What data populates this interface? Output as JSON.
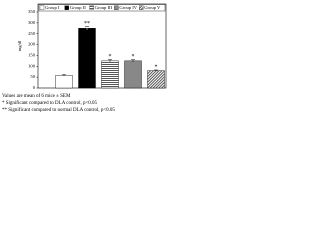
{
  "chart_data": {
    "type": "bar",
    "ylabel": "mg/dl",
    "categories": [
      null
    ],
    "series": [
      {
        "name": "Group I",
        "color": "#ffffff",
        "pattern": "solid",
        "values": [
          58
        ],
        "errors": [
          3
        ],
        "marker": null
      },
      {
        "name": "Group II",
        "color": "#000000",
        "pattern": "solid",
        "values": [
          275
        ],
        "errors": [
          8
        ],
        "marker": "**"
      },
      {
        "name": "Group III",
        "color": "#555555",
        "pattern": "hstripe",
        "values": [
          125
        ],
        "errors": [
          5
        ],
        "marker": "*"
      },
      {
        "name": "Group IV",
        "color": "#888888",
        "pattern": "solid",
        "values": [
          125
        ],
        "errors": [
          5
        ],
        "marker": "*"
      },
      {
        "name": "Group V",
        "color": "#555555",
        "pattern": "diag",
        "values": [
          80
        ],
        "errors": [
          3
        ],
        "marker": "*"
      }
    ],
    "ylim": [
      0,
      350
    ],
    "yticks": [
      0,
      50,
      100,
      150,
      200,
      250,
      300,
      350
    ],
    "notes": [
      "Values are mean of 6 mice ± SEM",
      "*  Significant compared to DLA control, p<0.05",
      "** Significant compared to normal DLA control, p<0.05"
    ]
  }
}
